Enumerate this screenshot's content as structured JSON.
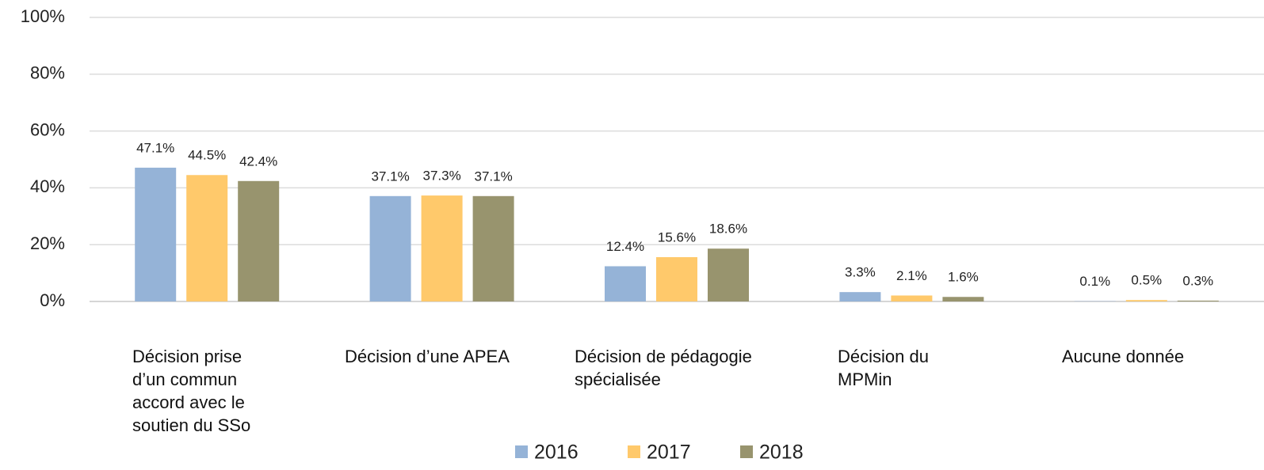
{
  "chart_data": {
    "type": "bar",
    "categories": [
      "Décision prise d’un commun accord avec le soutien du SSo",
      "Décision d’une APEA",
      "Décision de pédagogie spécialisée",
      "Décision du MPMin",
      "Aucune donnée"
    ],
    "series": [
      {
        "name": "2016",
        "color": "#95b3d7",
        "values": [
          47.1,
          37.1,
          12.4,
          3.3,
          0.1
        ],
        "value_labels": [
          "47.1%",
          "37.1%",
          "12.4%",
          "3.3%",
          "0.1%"
        ]
      },
      {
        "name": "2017",
        "color": "#ffc96b",
        "values": [
          44.5,
          37.3,
          15.6,
          2.1,
          0.5
        ],
        "value_labels": [
          "44.5%",
          "37.3%",
          "15.6%",
          "2.1%",
          "0.5%"
        ]
      },
      {
        "name": "2018",
        "color": "#98946e",
        "values": [
          42.4,
          37.1,
          18.6,
          1.6,
          0.3
        ],
        "value_labels": [
          "42.4%",
          "37.1%",
          "18.6%",
          "1.6%",
          "0.3%"
        ]
      }
    ],
    "ylim": [
      0,
      100
    ],
    "yticks": [
      {
        "value": 0,
        "label": "0%"
      },
      {
        "value": 20,
        "label": "20%"
      },
      {
        "value": 40,
        "label": "40%"
      },
      {
        "value": 60,
        "label": "60%"
      },
      {
        "value": 80,
        "label": "80%"
      },
      {
        "value": 100,
        "label": "100%"
      }
    ],
    "grid": true,
    "legend": "bottom"
  }
}
